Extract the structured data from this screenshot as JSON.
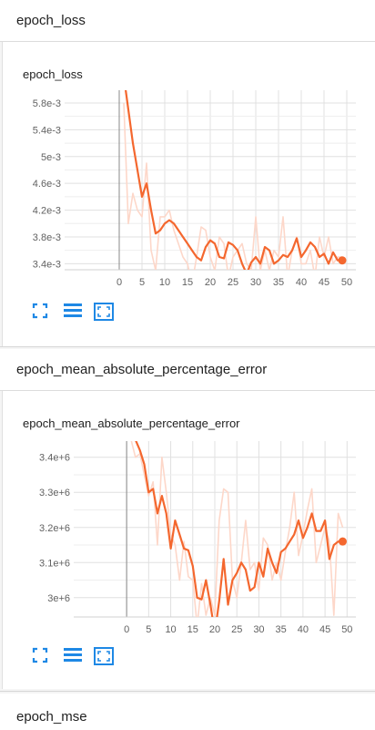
{
  "sections": [
    {
      "title": "epoch_loss"
    },
    {
      "title": "epoch_mean_absolute_percentage_error"
    },
    {
      "title": "epoch_mse"
    }
  ],
  "toolbar": {
    "icons": [
      "fullscreen-icon",
      "toggle-log-scale-icon",
      "fit-domain-icon"
    ],
    "accent": "#1e88e5"
  },
  "colors": {
    "smoothed_line": "#f4672e",
    "raw_line": "#fdd7c9",
    "grid": "#e0e0e0"
  },
  "chart_data": [
    {
      "type": "line",
      "title": "epoch_loss",
      "xlabel": "",
      "ylabel": "",
      "xlim": [
        -12,
        52
      ],
      "ylim": [
        0.00331,
        0.00599
      ],
      "x_ticks": [
        0,
        5,
        10,
        15,
        20,
        25,
        30,
        35,
        40,
        45,
        50
      ],
      "y_ticks": [
        0.0034,
        0.0038,
        0.0042,
        0.0046,
        0.005,
        0.0054,
        0.0058
      ],
      "y_tick_labels": [
        "3.4e-3",
        "3.8e-3",
        "4.2e-3",
        "4.6e-3",
        "5e-3",
        "5.4e-3",
        "5.8e-3"
      ],
      "grid": true,
      "series": [
        {
          "x": [
            1,
            2,
            3,
            4,
            5,
            6,
            7,
            8,
            9,
            10,
            11,
            12,
            13,
            14,
            15,
            16,
            17,
            18,
            19,
            20,
            21,
            22,
            23,
            24,
            25,
            26,
            27,
            28,
            29,
            30,
            31,
            32,
            33,
            34,
            35,
            36,
            37,
            38,
            39,
            40,
            41,
            42,
            43,
            44,
            45,
            46,
            47,
            48,
            49
          ],
          "values": [
            0.0058,
            0.004,
            0.00445,
            0.0042,
            0.0041,
            0.0049,
            0.0036,
            0.0033,
            0.0041,
            0.0041,
            0.0042,
            0.0039,
            0.0037,
            0.0035,
            0.0034,
            0.0031,
            0.0035,
            0.00395,
            0.0039,
            0.0035,
            0.0033,
            0.0038,
            0.0037,
            0.0032,
            0.0035,
            0.0036,
            0.0037,
            0.0034,
            0.0033,
            0.0041,
            0.0033,
            0.0036,
            0.0033,
            0.0036,
            0.0035,
            0.0041,
            0.0032,
            0.0036,
            0.0038,
            0.0034,
            0.0034,
            0.0036,
            0.0032,
            0.0038,
            0.0035,
            0.0038,
            0.0034,
            0.0035,
            0.0035
          ]
        },
        {
          "x": [
            1,
            2,
            3,
            4,
            5,
            6,
            7,
            8,
            9,
            10,
            11,
            12,
            13,
            14,
            15,
            16,
            17,
            18,
            19,
            20,
            21,
            22,
            23,
            24,
            25,
            26,
            27,
            28,
            29,
            30,
            31,
            32,
            33,
            34,
            35,
            36,
            37,
            38,
            39,
            40,
            41,
            42,
            43,
            44,
            45,
            46,
            47,
            48,
            49
          ],
          "values": [
            0.0062,
            0.0057,
            0.0052,
            0.0048,
            0.0044,
            0.0046,
            0.0042,
            0.00385,
            0.0039,
            0.004,
            0.00405,
            0.004,
            0.0039,
            0.0038,
            0.0037,
            0.0036,
            0.0035,
            0.00345,
            0.00365,
            0.00375,
            0.0037,
            0.0035,
            0.00348,
            0.00372,
            0.00368,
            0.0036,
            0.0034,
            0.00325,
            0.00342,
            0.0035,
            0.0034,
            0.00365,
            0.0036,
            0.0034,
            0.00345,
            0.00353,
            0.0035,
            0.0036,
            0.00378,
            0.0035,
            0.0036,
            0.00372,
            0.00365,
            0.0035,
            0.00355,
            0.0034,
            0.00357,
            0.00345,
            0.00345
          ]
        }
      ]
    },
    {
      "type": "line",
      "title": "epoch_mean_absolute_percentage_error",
      "xlabel": "",
      "ylabel": "",
      "xlim": [
        -12,
        52
      ],
      "ylim": [
        2945000,
        3446000
      ],
      "x_ticks": [
        0,
        5,
        10,
        15,
        20,
        25,
        30,
        35,
        40,
        45,
        50
      ],
      "y_ticks": [
        3000000,
        3100000,
        3200000,
        3300000,
        3400000
      ],
      "y_tick_labels": [
        "3e+6",
        "3.1e+6",
        "3.2e+6",
        "3.3e+6",
        "3.4e+6"
      ],
      "grid": true,
      "series": [
        {
          "x": [
            1,
            2,
            3,
            4,
            5,
            6,
            7,
            8,
            9,
            10,
            11,
            12,
            13,
            14,
            15,
            16,
            17,
            18,
            19,
            20,
            21,
            22,
            23,
            24,
            25,
            26,
            27,
            28,
            29,
            30,
            31,
            32,
            33,
            34,
            35,
            36,
            37,
            38,
            39,
            40,
            41,
            42,
            43,
            44,
            45,
            46,
            47,
            48,
            49
          ],
          "values": [
            3450000,
            3400000,
            3410000,
            3350000,
            3290000,
            3330000,
            3150000,
            3400000,
            3300000,
            3180000,
            3150000,
            3050000,
            3160000,
            3060000,
            3050000,
            2920000,
            3040000,
            2950000,
            3000000,
            2950000,
            3220000,
            3310000,
            3300000,
            3050000,
            3000000,
            3100000,
            3220000,
            3080000,
            3100000,
            3020000,
            3170000,
            3150000,
            3050000,
            3100000,
            3050000,
            3130000,
            3200000,
            3300000,
            3120000,
            3180000,
            3250000,
            3310000,
            3100000,
            3150000,
            3200000,
            3160000,
            2950000,
            3240000,
            3200000
          ]
        },
        {
          "x": [
            1,
            2,
            3,
            4,
            5,
            6,
            7,
            8,
            9,
            10,
            11,
            12,
            13,
            14,
            15,
            16,
            17,
            18,
            19,
            20,
            21,
            22,
            23,
            24,
            25,
            26,
            27,
            28,
            29,
            30,
            31,
            32,
            33,
            34,
            35,
            36,
            37,
            38,
            39,
            40,
            41,
            42,
            43,
            44,
            45,
            46,
            47,
            48,
            49
          ],
          "values": [
            3450000,
            3450000,
            3420000,
            3380000,
            3300000,
            3310000,
            3240000,
            3290000,
            3240000,
            3140000,
            3220000,
            3180000,
            3140000,
            3135000,
            3090000,
            3000000,
            2995000,
            3050000,
            2980000,
            2900000,
            2990000,
            3110000,
            2980000,
            3050000,
            3070000,
            3100000,
            3080000,
            3020000,
            3030000,
            3100000,
            3060000,
            3140000,
            3100000,
            3070000,
            3130000,
            3140000,
            3160000,
            3180000,
            3220000,
            3170000,
            3200000,
            3240000,
            3190000,
            3190000,
            3220000,
            3110000,
            3150000,
            3160000,
            3160000
          ]
        }
      ]
    }
  ]
}
